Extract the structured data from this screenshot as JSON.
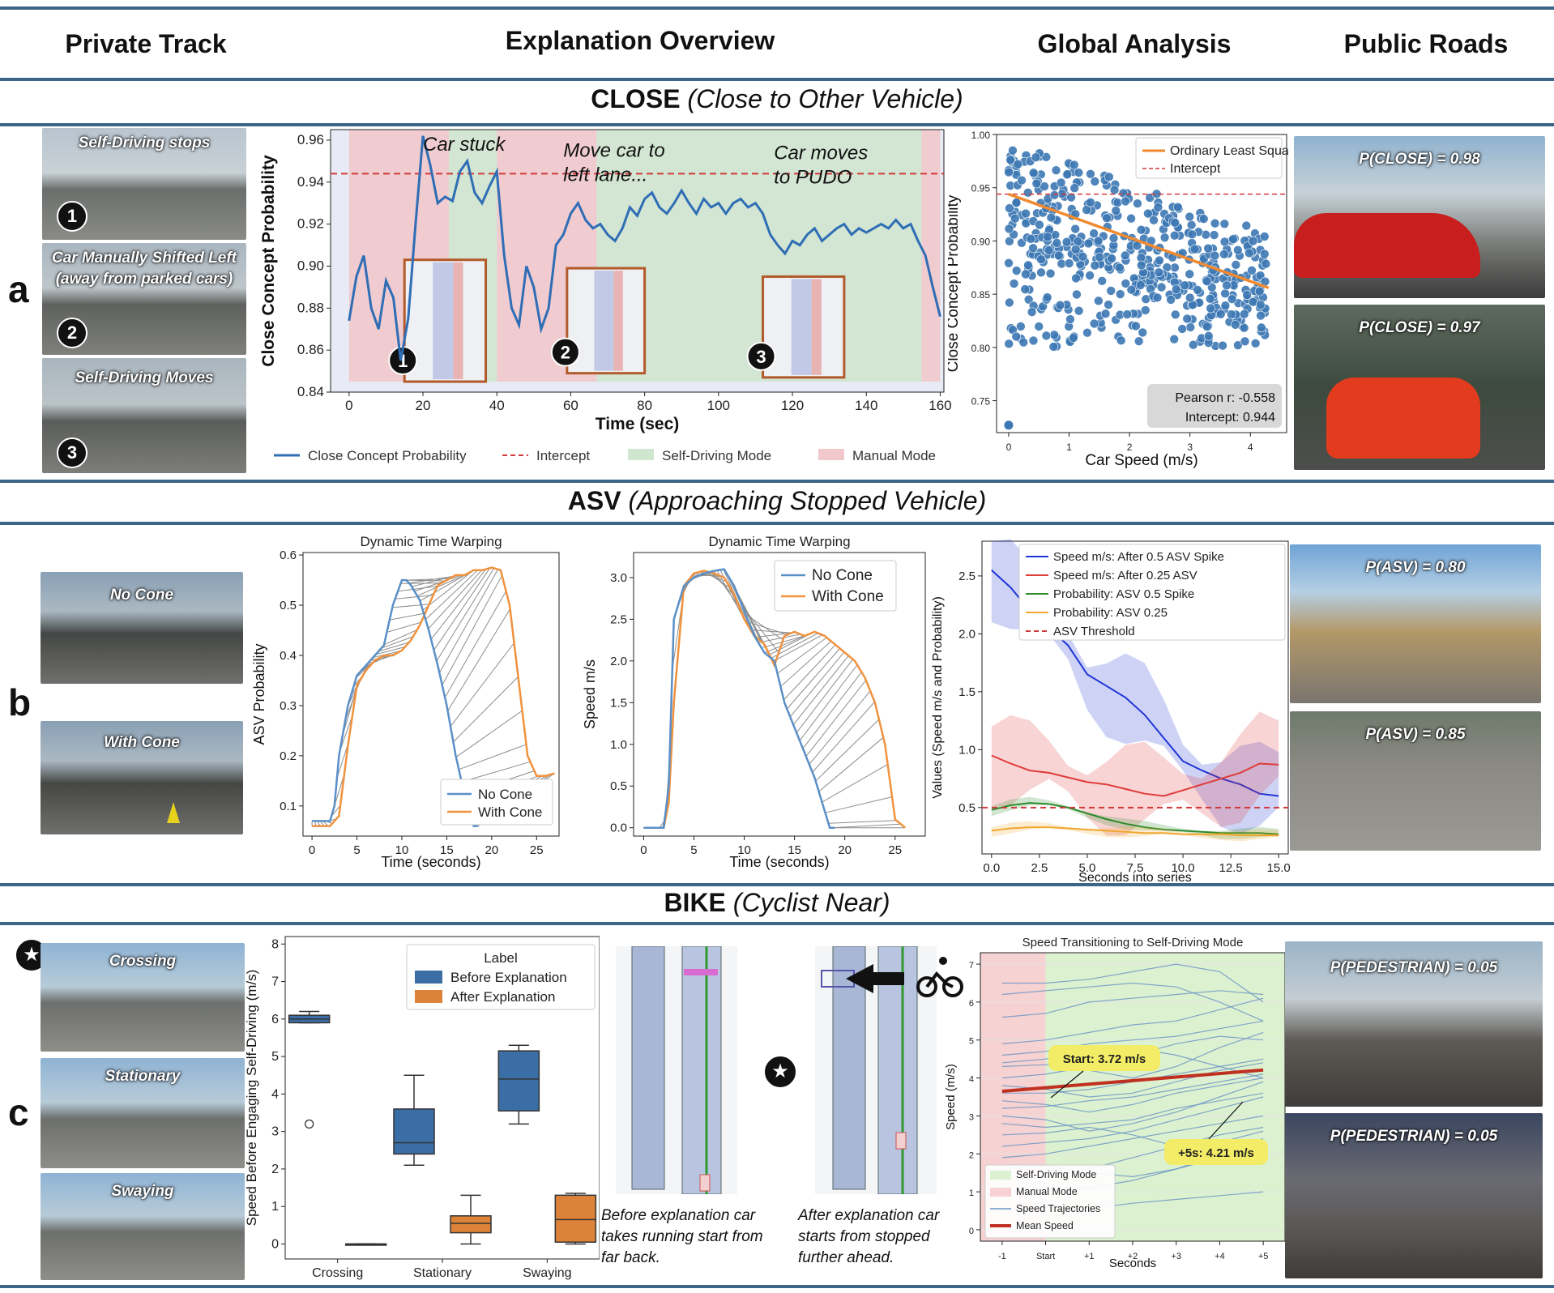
{
  "columns": [
    "Private Track",
    "Explanation Overview",
    "Global Analysis",
    "Public Roads"
  ],
  "sections": {
    "close": {
      "acronym": "CLOSE",
      "desc": "(Close to Other Vehicle)"
    },
    "asv": {
      "acronym": "ASV",
      "desc": "(Approaching Stopped Vehicle)"
    },
    "bike": {
      "acronym": "BIKE",
      "desc": "(Cyclist Near)"
    }
  },
  "row_labels": [
    "a",
    "b",
    "c"
  ],
  "row_a": {
    "photos": [
      {
        "caption": "Self-Driving stops",
        "badge": "1"
      },
      {
        "caption": "Car Manually Shifted Left\n(away from parked cars)",
        "badge": "2"
      },
      {
        "caption": "Self-Driving Moves",
        "badge": "3"
      }
    ],
    "public": [
      "P(CLOSE) = 0.98",
      "P(CLOSE) = 0.97"
    ],
    "timeline_chart": {
      "type": "line",
      "xlabel": "Time (sec)",
      "ylabel": "Close Concept Probability",
      "xlim": [
        -5,
        161
      ],
      "ylim": [
        0.84,
        0.965
      ],
      "xticks": [
        0,
        20,
        40,
        60,
        80,
        100,
        120,
        140,
        160
      ],
      "yticks": [
        0.84,
        0.86,
        0.88,
        0.9,
        0.92,
        0.94,
        0.96
      ],
      "intercept": 0.944,
      "annotations": [
        {
          "text": "Car stuck",
          "x": 20,
          "y": 0.955
        },
        {
          "text": "Move car to left lane...",
          "x": 58,
          "y": 0.952
        },
        {
          "text": "Car moves to PUDO",
          "x": 115,
          "y": 0.951
        }
      ],
      "markers": [
        "1",
        "2",
        "3"
      ],
      "legend": [
        "Close Concept Probability",
        "Intercept",
        "Self-Driving Mode",
        "Manual Mode"
      ],
      "modes": [
        {
          "mode": "manual",
          "from": 0,
          "to": 27
        },
        {
          "mode": "self",
          "from": 27,
          "to": 40
        },
        {
          "mode": "manual",
          "from": 40,
          "to": 67
        },
        {
          "mode": "self",
          "from": 67,
          "to": 155
        },
        {
          "mode": "manual",
          "from": 155,
          "to": 160
        }
      ],
      "series": {
        "name": "Close Concept Probability",
        "x": [
          0,
          2,
          4,
          6,
          8,
          10,
          12,
          14,
          16,
          18,
          20,
          22,
          24,
          26,
          28,
          30,
          32,
          34,
          36,
          38,
          40,
          42,
          44,
          46,
          48,
          50,
          52,
          54,
          56,
          58,
          60,
          62,
          64,
          66,
          68,
          70,
          72,
          74,
          76,
          78,
          80,
          82,
          84,
          86,
          88,
          90,
          92,
          94,
          96,
          98,
          100,
          102,
          104,
          106,
          108,
          110,
          112,
          114,
          116,
          118,
          120,
          122,
          124,
          126,
          128,
          130,
          132,
          134,
          136,
          138,
          140,
          142,
          144,
          146,
          148,
          150,
          152,
          154,
          156,
          158,
          160
        ],
        "y": [
          0.874,
          0.895,
          0.905,
          0.88,
          0.87,
          0.893,
          0.885,
          0.855,
          0.875,
          0.92,
          0.962,
          0.948,
          0.93,
          0.933,
          0.931,
          0.945,
          0.95,
          0.935,
          0.93,
          0.938,
          0.945,
          0.905,
          0.88,
          0.872,
          0.9,
          0.89,
          0.87,
          0.88,
          0.91,
          0.915,
          0.925,
          0.93,
          0.922,
          0.918,
          0.92,
          0.915,
          0.912,
          0.918,
          0.928,
          0.924,
          0.932,
          0.935,
          0.928,
          0.925,
          0.93,
          0.936,
          0.93,
          0.925,
          0.932,
          0.928,
          0.93,
          0.925,
          0.93,
          0.932,
          0.928,
          0.93,
          0.925,
          0.915,
          0.91,
          0.906,
          0.912,
          0.91,
          0.915,
          0.918,
          0.912,
          0.915,
          0.918,
          0.92,
          0.915,
          0.918,
          0.916,
          0.918,
          0.92,
          0.918,
          0.922,
          0.918,
          0.92,
          0.912,
          0.905,
          0.89,
          0.876
        ]
      }
    },
    "scatter_chart": {
      "type": "scatter",
      "xlabel": "Car Speed (m/s)",
      "ylabel": "Close Concept Probability",
      "xlim": [
        -0.2,
        4.6
      ],
      "ylim": [
        0.72,
        1.0
      ],
      "xticks": [
        0,
        1,
        2,
        3,
        4
      ],
      "yticks": [
        0.75,
        0.8,
        0.85,
        0.9,
        0.95,
        1.0
      ],
      "legend": [
        "Ordinary Least Squares",
        "Intercept"
      ],
      "ols": {
        "x": [
          0,
          4.3
        ],
        "y": [
          0.944,
          0.856
        ]
      },
      "intercept": 0.944,
      "stats": [
        "Pearson r: -0.558",
        "Intercept: 0.944"
      ]
    }
  },
  "row_b": {
    "photos": [
      {
        "caption": "No Cone"
      },
      {
        "caption": "With Cone"
      }
    ],
    "public": [
      "P(ASV) = 0.80",
      "P(ASV) = 0.85"
    ],
    "dtw1": {
      "type": "line",
      "title": "Dynamic Time Warping",
      "xlabel": "Time (seconds)",
      "ylabel": "ASV Probability",
      "xlim": [
        -1,
        27.5
      ],
      "ylim": [
        0.04,
        0.605
      ],
      "xticks": [
        0,
        5,
        10,
        15,
        20,
        25
      ],
      "yticks": [
        0.1,
        0.2,
        0.3,
        0.4,
        0.5,
        0.6
      ],
      "legend": [
        "No Cone",
        "With Cone"
      ],
      "series": [
        {
          "name": "No Cone",
          "x": [
            0,
            1,
            2,
            2.5,
            3,
            4,
            5,
            6,
            7,
            8,
            9,
            10,
            10.5,
            11,
            12,
            13,
            14,
            15,
            16,
            17,
            18,
            18.5
          ],
          "y": [
            0.07,
            0.07,
            0.07,
            0.1,
            0.2,
            0.3,
            0.36,
            0.38,
            0.4,
            0.42,
            0.5,
            0.55,
            0.55,
            0.54,
            0.51,
            0.45,
            0.38,
            0.3,
            0.2,
            0.12,
            0.06,
            0.06
          ]
        },
        {
          "name": "With Cone",
          "x": [
            0,
            1,
            2,
            3,
            4,
            5,
            6,
            7,
            8,
            9,
            10,
            11,
            12,
            13,
            14,
            15,
            16,
            17,
            18,
            19,
            20,
            21,
            22,
            23,
            24,
            25,
            26,
            27
          ],
          "y": [
            0.06,
            0.06,
            0.06,
            0.08,
            0.22,
            0.34,
            0.37,
            0.39,
            0.4,
            0.4,
            0.41,
            0.43,
            0.46,
            0.5,
            0.54,
            0.55,
            0.56,
            0.56,
            0.57,
            0.57,
            0.575,
            0.57,
            0.5,
            0.35,
            0.2,
            0.16,
            0.16,
            0.165
          ]
        }
      ]
    },
    "dtw2": {
      "type": "line",
      "title": "Dynamic Time Warping",
      "xlabel": "Time (seconds)",
      "ylabel": "Speed m/s",
      "xlim": [
        -1,
        28
      ],
      "ylim": [
        -0.1,
        3.3
      ],
      "xticks": [
        0,
        5,
        10,
        15,
        20,
        25
      ],
      "yticks": [
        0.0,
        0.5,
        1.0,
        1.5,
        2.0,
        2.5,
        3.0
      ],
      "legend": [
        "No Cone",
        "With Cone"
      ],
      "series": [
        {
          "name": "No Cone",
          "x": [
            0,
            1,
            2,
            2.5,
            3,
            4,
            5,
            6,
            7,
            8,
            9,
            10,
            11,
            12,
            13,
            14,
            15,
            16,
            17,
            18,
            18.5,
            19
          ],
          "y": [
            0,
            0,
            0,
            0.5,
            2.5,
            2.9,
            3.0,
            3.05,
            3.08,
            3.1,
            2.9,
            2.6,
            2.3,
            2.1,
            2.0,
            1.5,
            1.2,
            0.9,
            0.6,
            0.2,
            0,
            0
          ]
        },
        {
          "name": "With Cone",
          "x": [
            0,
            1,
            2,
            2.5,
            3,
            4,
            5,
            6,
            7,
            8,
            9,
            10,
            11,
            12,
            13,
            14,
            15,
            16,
            17,
            18,
            19,
            20,
            21,
            22,
            23,
            24,
            25,
            26
          ],
          "y": [
            0,
            0,
            0,
            0.3,
            1.5,
            2.9,
            3.05,
            3.08,
            3.05,
            3.0,
            2.8,
            2.5,
            2.3,
            2.2,
            1.95,
            2.3,
            2.35,
            2.3,
            2.35,
            2.3,
            2.2,
            2.1,
            2.0,
            1.8,
            1.5,
            1.0,
            0.1,
            0
          ]
        }
      ]
    },
    "global_chart": {
      "type": "line",
      "xlabel": "Seconds into series",
      "ylabel": "Values (Speed m/s and Probability)",
      "xlim": [
        -0.5,
        15.5
      ],
      "ylim": [
        0.1,
        2.8
      ],
      "xticks": [
        0.0,
        2.5,
        5.0,
        7.5,
        10.0,
        12.5,
        15.0
      ],
      "yticks": [
        0.5,
        1.0,
        1.5,
        2.0,
        2.5
      ],
      "threshold": 0.5,
      "legend": [
        "Speed m/s: After 0.5 ASV Spike",
        "Speed m/s: After 0.25 ASV",
        "Probability: ASV 0.5 Spike",
        "Probability: ASV 0.25",
        "ASV Threshold"
      ],
      "series": [
        {
          "name": "Speed m/s: After 0.5 ASV Spike",
          "color": "#1f35d6",
          "band": 0.25,
          "x": [
            0,
            1,
            2,
            3,
            4,
            5,
            6,
            7,
            8,
            9,
            10,
            11,
            12,
            13,
            14,
            15
          ],
          "y": [
            2.55,
            2.4,
            2.2,
            2.05,
            1.9,
            1.65,
            1.55,
            1.45,
            1.3,
            1.1,
            0.9,
            0.82,
            0.75,
            0.7,
            0.62,
            0.6
          ]
        },
        {
          "name": "Speed m/s: After 0.25 ASV",
          "color": "#e03c3c",
          "band": 0.25,
          "x": [
            0,
            1,
            2,
            3,
            4,
            5,
            6,
            7,
            8,
            9,
            10,
            11,
            12,
            13,
            14,
            15
          ],
          "y": [
            0.95,
            0.88,
            0.82,
            0.8,
            0.76,
            0.72,
            0.7,
            0.66,
            0.62,
            0.6,
            0.65,
            0.7,
            0.75,
            0.8,
            0.88,
            0.87
          ]
        },
        {
          "name": "Probability: ASV 0.5 Spike",
          "color": "#2e8b2e",
          "band": 0.03,
          "x": [
            0,
            1,
            2,
            3,
            4,
            5,
            6,
            7,
            8,
            9,
            10,
            11,
            12,
            13,
            14,
            15
          ],
          "y": [
            0.48,
            0.52,
            0.54,
            0.53,
            0.5,
            0.45,
            0.4,
            0.36,
            0.33,
            0.31,
            0.3,
            0.29,
            0.28,
            0.28,
            0.28,
            0.27
          ]
        },
        {
          "name": "Probability: ASV 0.25",
          "color": "#f0a830",
          "band": 0.03,
          "x": [
            0,
            1,
            2,
            3,
            4,
            5,
            6,
            7,
            8,
            9,
            10,
            11,
            12,
            13,
            14,
            15
          ],
          "y": [
            0.3,
            0.32,
            0.33,
            0.33,
            0.32,
            0.31,
            0.3,
            0.29,
            0.28,
            0.28,
            0.27,
            0.27,
            0.27,
            0.26,
            0.26,
            0.26
          ]
        }
      ]
    }
  },
  "row_c": {
    "photos": [
      {
        "caption": "Crossing"
      },
      {
        "caption": "Stationary"
      },
      {
        "caption": "Swaying"
      }
    ],
    "star": "★",
    "public": [
      "P(PEDESTRIAN) = 0.05",
      "P(PEDESTRIAN) = 0.05"
    ],
    "box_chart": {
      "type": "box",
      "ylabel": "Speed Before Engaging Self-Driving (m/s)",
      "categories": [
        "Crossing",
        "Stationary",
        "Swaying"
      ],
      "ylim": [
        -0.4,
        8.2
      ],
      "yticks": [
        0,
        1,
        2,
        3,
        4,
        5,
        6,
        7,
        8
      ],
      "legend_title": "Label",
      "legend": [
        "Before Explanation",
        "After Explanation"
      ],
      "boxes": [
        {
          "cat": 0,
          "group": "before",
          "min": 5.9,
          "q1": 5.9,
          "med": 6.0,
          "q3": 6.1,
          "max": 6.2,
          "outliers": [
            3.2
          ]
        },
        {
          "cat": 0,
          "group": "after",
          "min": 0,
          "q1": 0,
          "med": 0,
          "q3": 0,
          "max": 0,
          "outliers": []
        },
        {
          "cat": 1,
          "group": "before",
          "min": 2.1,
          "q1": 2.4,
          "med": 2.7,
          "q3": 3.6,
          "max": 4.5,
          "outliers": []
        },
        {
          "cat": 1,
          "group": "after",
          "min": 0.0,
          "q1": 0.3,
          "med": 0.55,
          "q3": 0.75,
          "max": 1.3,
          "outliers": []
        },
        {
          "cat": 2,
          "group": "before",
          "min": 3.2,
          "q1": 3.55,
          "med": 4.4,
          "q3": 5.15,
          "max": 5.3,
          "outliers": []
        },
        {
          "cat": 2,
          "group": "after",
          "min": 0.0,
          "q1": 0.05,
          "med": 0.65,
          "q3": 1.3,
          "max": 1.35,
          "outliers": []
        }
      ]
    },
    "map_captions": [
      "Before explanation car\ntakes running start from\nfar back.",
      "After explanation car\nstarts from stopped\nfurther ahead."
    ],
    "speed_chart": {
      "type": "line",
      "title": "Speed Transitioning to Self-Driving Mode",
      "xlabel": "Seconds",
      "ylabel": "Speed (m/s)",
      "categories": [
        "-1",
        "Start",
        "+1",
        "+2",
        "+3",
        "+4",
        "+5"
      ],
      "ylim": [
        -0.3,
        7.3
      ],
      "yticks": [
        0,
        1,
        2,
        3,
        4,
        5,
        6,
        7
      ],
      "legend": [
        "Self-Driving Mode",
        "Manual Mode",
        "Speed Trajectories",
        "Mean Speed"
      ],
      "mean": {
        "x": [
          -1,
          5
        ],
        "y": [
          3.65,
          4.21
        ]
      },
      "callouts": [
        "Start: 3.72 m/s",
        "+5s: 4.21 m/s"
      ],
      "trajectories": [
        [
          6.5,
          6.5,
          6.6,
          6.8,
          7.0,
          6.8,
          6.0
        ],
        [
          6.2,
          6.3,
          6.4,
          6.5,
          6.4,
          6.0,
          5.5
        ],
        [
          5.6,
          5.7,
          6.0,
          6.1,
          6.2,
          6.3,
          6.2
        ],
        [
          4.9,
          5.0,
          5.2,
          5.4,
          5.5,
          5.8,
          6.1
        ],
        [
          4.6,
          4.7,
          4.9,
          5.0,
          5.1,
          5.3,
          5.5
        ],
        [
          4.3,
          4.35,
          4.2,
          4.0,
          4.3,
          4.8,
          5.2
        ],
        [
          4.0,
          4.1,
          4.3,
          4.6,
          4.9,
          5.1,
          5.0
        ],
        [
          3.8,
          3.7,
          3.5,
          3.6,
          3.9,
          4.2,
          4.4
        ],
        [
          3.6,
          3.6,
          3.7,
          3.9,
          4.1,
          4.3,
          4.5
        ],
        [
          3.4,
          3.3,
          3.1,
          3.3,
          3.6,
          3.8,
          4.0
        ],
        [
          3.2,
          3.25,
          3.4,
          3.5,
          3.7,
          3.9,
          4.1
        ],
        [
          3.0,
          2.9,
          2.6,
          2.8,
          3.1,
          3.5,
          3.9
        ],
        [
          2.8,
          2.7,
          2.8,
          2.9,
          3.2,
          3.4,
          3.6
        ],
        [
          2.5,
          2.55,
          2.7,
          2.5,
          2.2,
          2.3,
          2.6
        ],
        [
          2.2,
          2.3,
          2.4,
          2.6,
          2.9,
          3.2,
          3.5
        ],
        [
          1.9,
          2.0,
          2.2,
          2.4,
          2.6,
          2.8,
          3.0
        ],
        [
          1.6,
          1.7,
          1.5,
          1.4,
          1.6,
          2.0,
          2.4
        ],
        [
          1.3,
          1.4,
          1.6,
          1.9,
          2.2,
          2.5,
          2.7
        ],
        [
          1.0,
          1.05,
          1.1,
          1.3,
          1.6,
          1.9,
          2.2
        ],
        [
          0.5,
          0.6,
          0.55,
          0.7,
          0.8,
          0.9,
          1.0
        ],
        [
          4.4,
          4.5,
          4.7,
          4.8,
          4.6,
          4.3,
          4.0
        ]
      ]
    }
  }
}
